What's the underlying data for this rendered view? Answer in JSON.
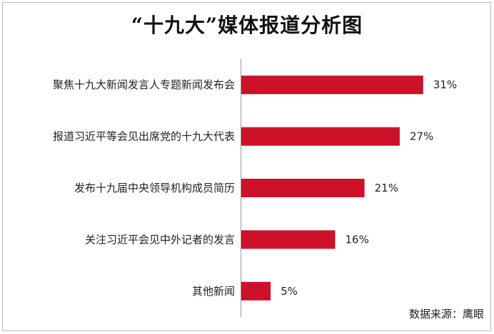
{
  "chart_data": {
    "type": "bar",
    "orientation": "horizontal",
    "title": "“十九大”媒体报道分析图",
    "categories": [
      "聚焦十九大新闻发言人专题新闻发布会",
      "报道习近平等会见出席党的十九大代表",
      "发布十九届中央领导机构成员简历",
      "关注习近平会见中外记者的发言",
      "其他新闻"
    ],
    "values": [
      31,
      27,
      21,
      16,
      5
    ],
    "value_labels": [
      "31%",
      "27%",
      "21%",
      "16%",
      "5%"
    ],
    "unit": "%",
    "xlim": [
      0,
      50
    ],
    "bar_color": "#cc1129",
    "grid": false,
    "legend": "none"
  },
  "source_note": "数据来源：鹰眼"
}
